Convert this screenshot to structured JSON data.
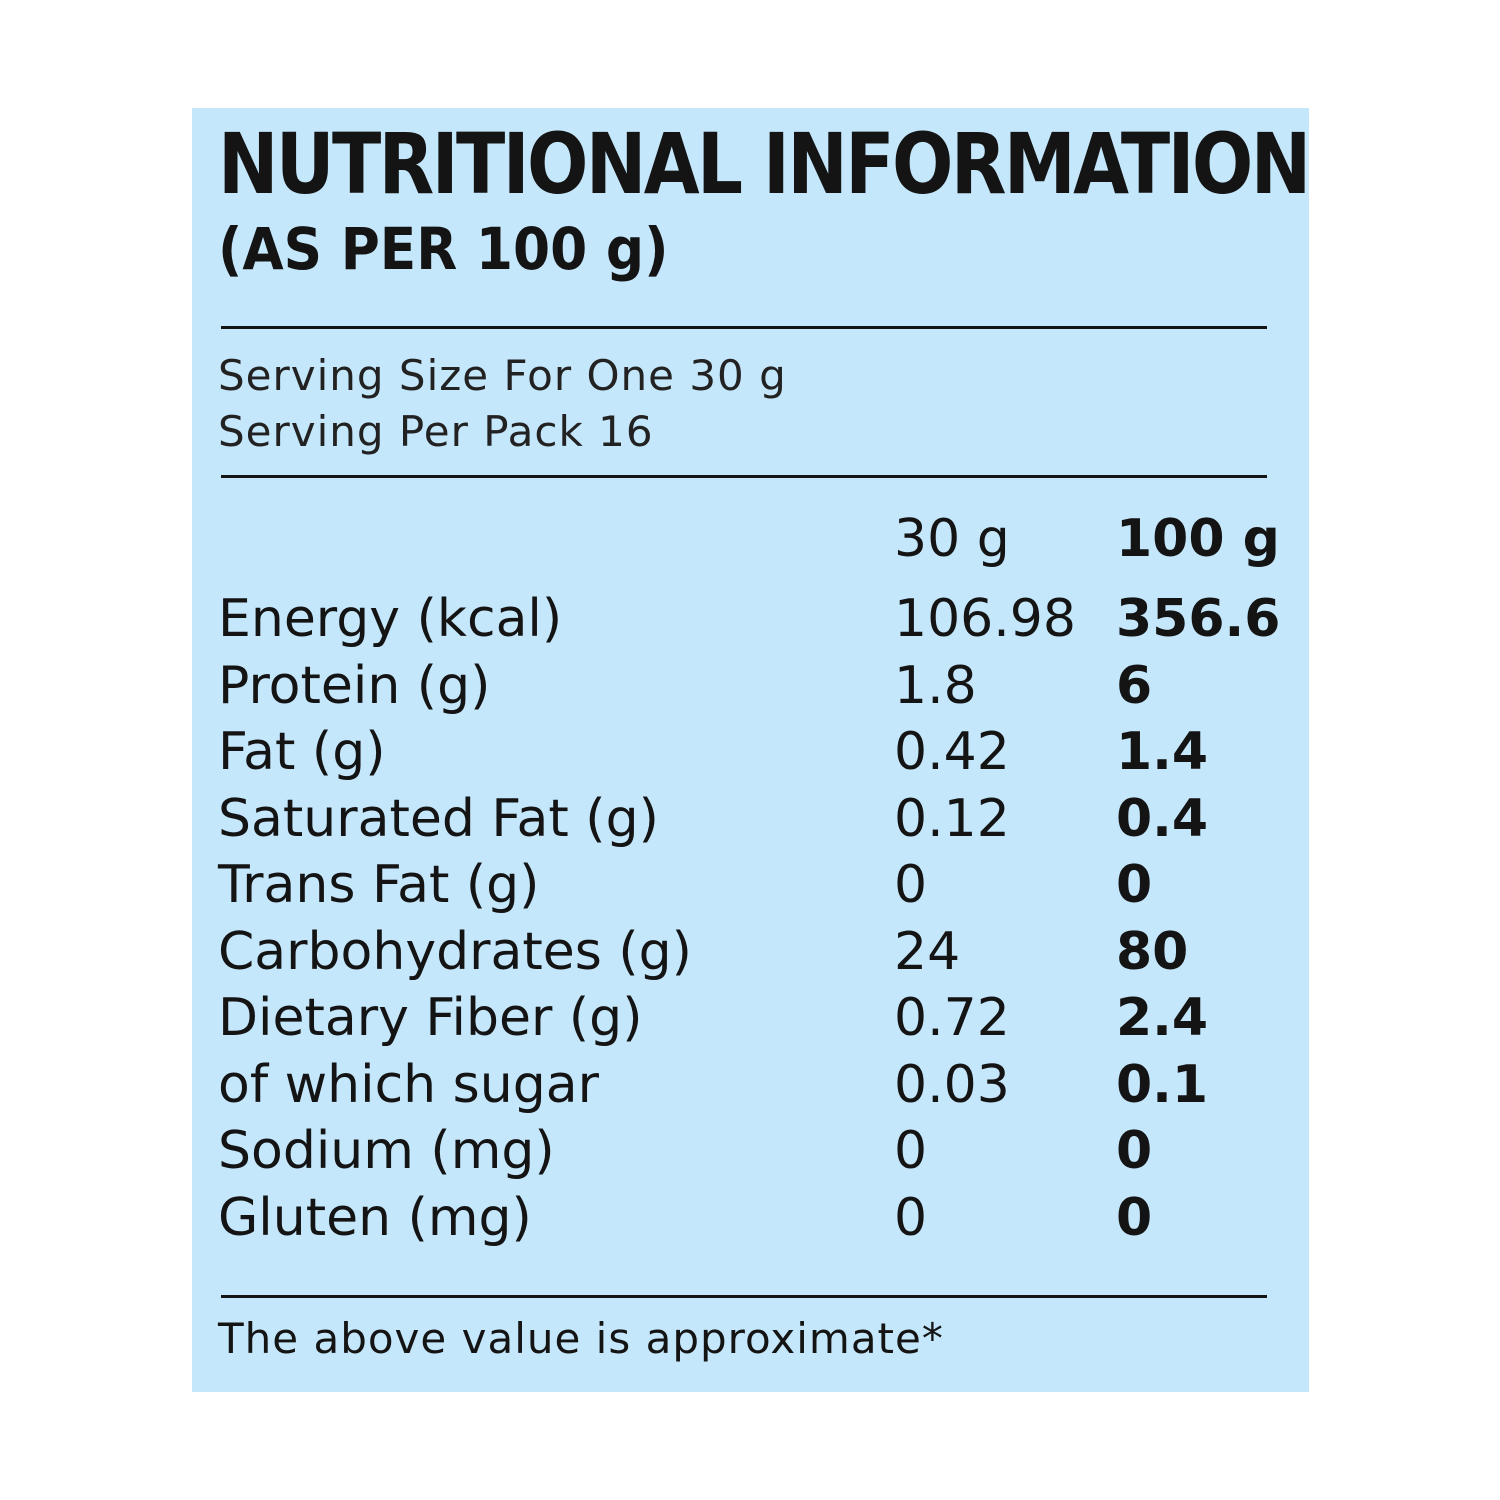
{
  "header": {
    "title": "NUTRITIONAL INFORMATION",
    "subtitle": "(AS PER 100 g)"
  },
  "serving": {
    "size": "Serving Size For One 30 g",
    "per_pack": "Serving Per Pack 16"
  },
  "columns": {
    "col1": "30 g",
    "col2": "100 g"
  },
  "nutrients": [
    {
      "name": "Energy (kcal)",
      "v30": "106.98",
      "v100": "356.6"
    },
    {
      "name": "Protein (g)",
      "v30": "1.8",
      "v100": "6"
    },
    {
      "name": "Fat (g)",
      "v30": "0.42",
      "v100": "1.4"
    },
    {
      "name": "Saturated Fat (g)",
      "v30": "0.12",
      "v100": "0.4"
    },
    {
      "name": "Trans Fat (g)",
      "v30": "0",
      "v100": "0"
    },
    {
      "name": "Carbohydrates (g)",
      "v30": "24",
      "v100": "80"
    },
    {
      "name": "Dietary Fiber (g)",
      "v30": "0.72",
      "v100": "2.4"
    },
    {
      "name": "of which sugar",
      "v30": "0.03",
      "v100": "0.1"
    },
    {
      "name": "Sodium (mg)",
      "v30": "0",
      "v100": "0"
    },
    {
      "name": "Gluten (mg)",
      "v30": "0",
      "v100": "0"
    }
  ],
  "footer": {
    "note": "The above value is approximate*"
  },
  "colors": {
    "panel": "#c5e7fb",
    "text": "#141414"
  }
}
